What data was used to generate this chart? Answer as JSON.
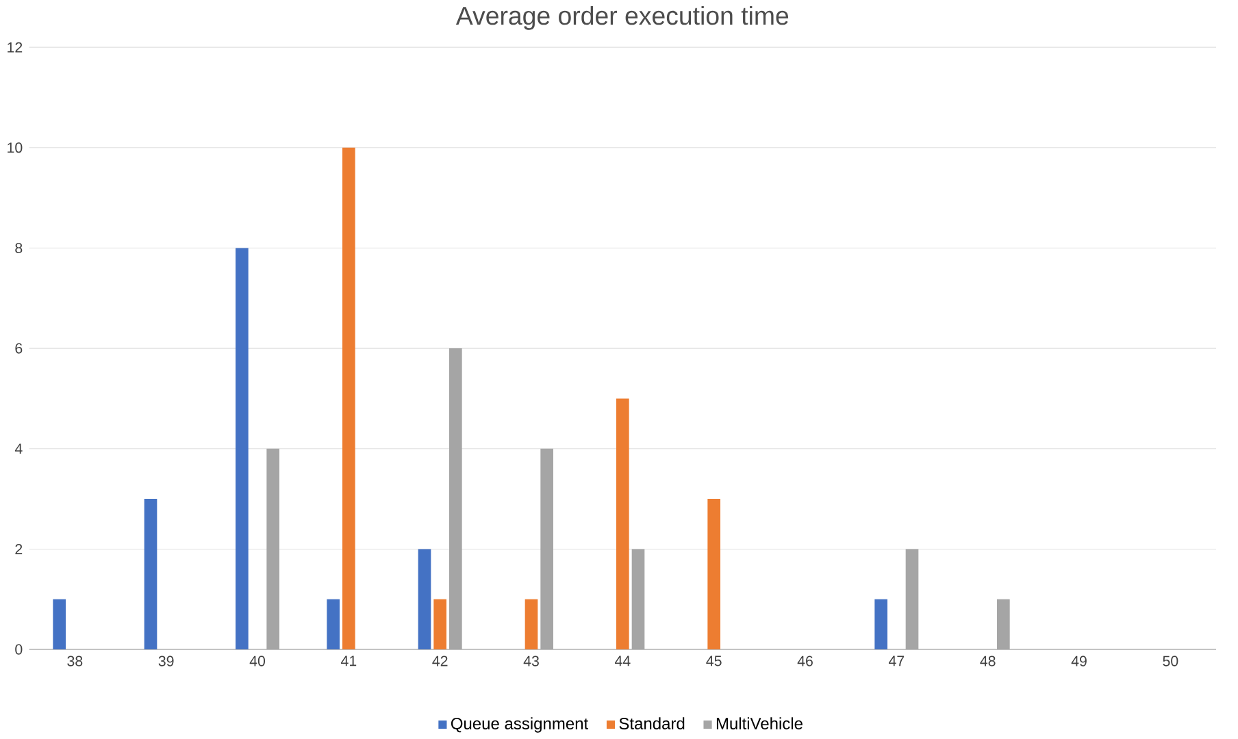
{
  "chart_data": {
    "type": "bar",
    "title": "Average order execution time",
    "categories": [
      "38",
      "39",
      "40",
      "41",
      "42",
      "43",
      "44",
      "45",
      "46",
      "47",
      "48",
      "49",
      "50"
    ],
    "series": [
      {
        "name": "Queue assignment",
        "color": "#4472c4",
        "values": [
          1,
          3,
          8,
          1,
          2,
          0,
          0,
          0,
          0,
          1,
          0,
          0,
          0
        ]
      },
      {
        "name": "Standard",
        "color": "#ed7d31",
        "values": [
          0,
          0,
          0,
          10,
          1,
          1,
          5,
          3,
          0,
          0,
          0,
          0,
          0
        ]
      },
      {
        "name": "MultiVehicle",
        "color": "#a5a5a5",
        "values": [
          0,
          0,
          4,
          0,
          6,
          4,
          2,
          0,
          0,
          2,
          1,
          0,
          0
        ]
      }
    ],
    "ylim": [
      0,
      12
    ],
    "yticks": [
      0,
      2,
      4,
      6,
      8,
      10,
      12
    ],
    "grid": "y",
    "legend": "bottom"
  }
}
